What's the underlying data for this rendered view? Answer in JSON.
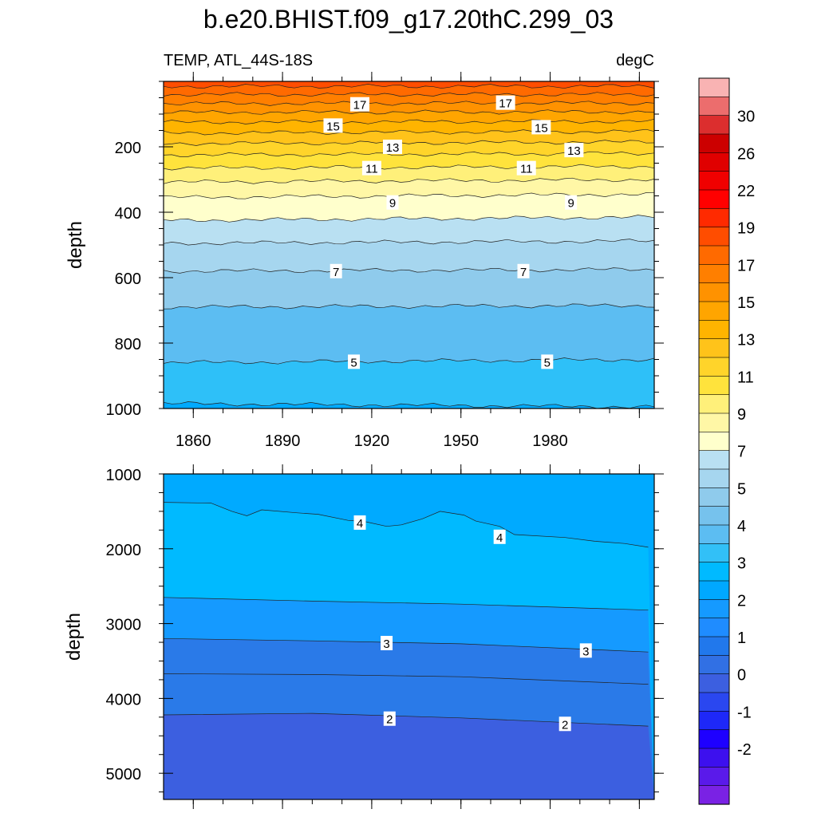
{
  "title": "b.e20.BHIST.f09_g17.20thC.299_03",
  "left_label": "TEMP, ATL_44S-18S",
  "right_label": "degC",
  "ylabel": "depth",
  "chart_data": [
    {
      "type": "heatmap",
      "panel": "upper",
      "ylabel": "depth",
      "ylim": [
        0,
        1000
      ],
      "y_reversed": true,
      "xlim": [
        1850,
        2015
      ],
      "x_ticks": [
        1860,
        1890,
        1920,
        1950,
        1980
      ],
      "y_ticks": [
        200,
        400,
        600,
        800,
        1000
      ],
      "contours": [
        {
          "level": 19,
          "depth_start": 15,
          "depth_end": 15
        },
        {
          "level": 18,
          "depth_start": 40,
          "depth_end": 40
        },
        {
          "level": 17,
          "depth_start": 68,
          "depth_end": 66
        },
        {
          "level": 16,
          "depth_start": 95,
          "depth_end": 93
        },
        {
          "level": 15,
          "depth_start": 125,
          "depth_end": 122
        },
        {
          "level": 14,
          "depth_start": 158,
          "depth_end": 153
        },
        {
          "level": 13,
          "depth_start": 190,
          "depth_end": 185
        },
        {
          "level": 12,
          "depth_start": 225,
          "depth_end": 220
        },
        {
          "level": 11,
          "depth_start": 265,
          "depth_end": 260
        },
        {
          "level": 10,
          "depth_start": 308,
          "depth_end": 300
        },
        {
          "level": 9,
          "depth_start": 355,
          "depth_end": 345
        },
        {
          "level": 8,
          "depth_start": 425,
          "depth_end": 415
        },
        {
          "level": 7.5,
          "depth_start": 495,
          "depth_end": 488
        },
        {
          "level": 7,
          "depth_start": 580,
          "depth_end": 575
        },
        {
          "level": 6,
          "depth_start": 690,
          "depth_end": 685
        },
        {
          "level": 5,
          "depth_start": 860,
          "depth_end": 850
        },
        {
          "level": 4,
          "depth_start": 985,
          "depth_end": 995
        }
      ],
      "contour_labels": [
        {
          "text": "17",
          "x": 1916,
          "depth": 70
        },
        {
          "text": "17",
          "x": 1965,
          "depth": 65
        },
        {
          "text": "15",
          "x": 1907,
          "depth": 135
        },
        {
          "text": "15",
          "x": 1977,
          "depth": 140
        },
        {
          "text": "13",
          "x": 1927,
          "depth": 200
        },
        {
          "text": "13",
          "x": 1988,
          "depth": 210
        },
        {
          "text": "11",
          "x": 1920,
          "depth": 265
        },
        {
          "text": "11",
          "x": 1972,
          "depth": 265
        },
        {
          "text": "9",
          "x": 1927,
          "depth": 370
        },
        {
          "text": "9",
          "x": 1987,
          "depth": 370
        },
        {
          "text": "7",
          "x": 1908,
          "depth": 580
        },
        {
          "text": "7",
          "x": 1971,
          "depth": 580
        },
        {
          "text": "5",
          "x": 1914,
          "depth": 857
        },
        {
          "text": "5",
          "x": 1979,
          "depth": 857
        }
      ]
    },
    {
      "type": "heatmap",
      "panel": "lower",
      "ylabel": "depth",
      "ylim": [
        1000,
        5350
      ],
      "y_reversed": true,
      "xlim": [
        1850,
        2015
      ],
      "y_ticks": [
        1000,
        2000,
        3000,
        4000,
        5000
      ],
      "contours": [
        {
          "level": 4.5,
          "x": [
            1850,
            1866,
            1873,
            1878,
            1883,
            1895,
            1902,
            1912,
            1918,
            1925,
            1930,
            1937,
            1943,
            1951,
            1955,
            1963,
            1968,
            1985,
            1995,
            2005,
            2013
          ],
          "depth": [
            1380,
            1390,
            1500,
            1560,
            1480,
            1520,
            1540,
            1620,
            1640,
            1700,
            1680,
            1600,
            1500,
            1550,
            1630,
            1700,
            1810,
            1850,
            1900,
            1930,
            1980
          ]
        },
        {
          "level": 3.5,
          "x": [
            1850,
            1900,
            1950,
            2013
          ],
          "depth": [
            2650,
            2700,
            2740,
            2820
          ]
        },
        {
          "level": 3,
          "x": [
            1850,
            1900,
            1950,
            2013
          ],
          "depth": [
            3200,
            3230,
            3270,
            3380
          ]
        },
        {
          "level": 2.5,
          "x": [
            1850,
            1900,
            1950,
            2013
          ],
          "depth": [
            3670,
            3680,
            3710,
            3810
          ]
        },
        {
          "level": 2,
          "x": [
            1850,
            1900,
            1950,
            2013
          ],
          "depth": [
            4220,
            4200,
            4260,
            4370
          ]
        }
      ],
      "contour_labels": [
        {
          "text": "4",
          "x": 1916,
          "depth": 1650
        },
        {
          "text": "4",
          "x": 1963,
          "depth": 1840
        },
        {
          "text": "3",
          "x": 1925,
          "depth": 3260
        },
        {
          "text": "3",
          "x": 1992,
          "depth": 3360
        },
        {
          "text": "2",
          "x": 1926,
          "depth": 4270
        },
        {
          "text": "2",
          "x": 1985,
          "depth": 4340
        }
      ]
    }
  ],
  "colorbar": {
    "labels": [
      "30",
      "26",
      "22",
      "19",
      "17",
      "15",
      "13",
      "11",
      "9",
      "7",
      "5",
      "4",
      "3",
      "2",
      "1",
      "0",
      "-1",
      "-2"
    ],
    "colors": [
      "#f9b3b3",
      "#ec6d6d",
      "#dc2e2e",
      "#cc0000",
      "#e00000",
      "#f00000",
      "#ff0000",
      "#ff2a00",
      "#ff4d00",
      "#ff6a00",
      "#ff7f00",
      "#ff9200",
      "#ffa500",
      "#ffb400",
      "#ffc31a",
      "#ffd42a",
      "#ffe33c",
      "#fff07a",
      "#fff7a6",
      "#ffffcc",
      "#b9e0f2",
      "#a6d6ef",
      "#8fcbec",
      "#76c2ed",
      "#5cbdf2",
      "#32c0f7",
      "#00baff",
      "#00a8ff",
      "#159aff",
      "#1f8cff",
      "#2178ec",
      "#3170e4",
      "#3c5fe0",
      "#2a47f0",
      "#1e28f8",
      "#1e00ff",
      "#3d10ee",
      "#5a1aea",
      "#7a22e4"
    ]
  }
}
